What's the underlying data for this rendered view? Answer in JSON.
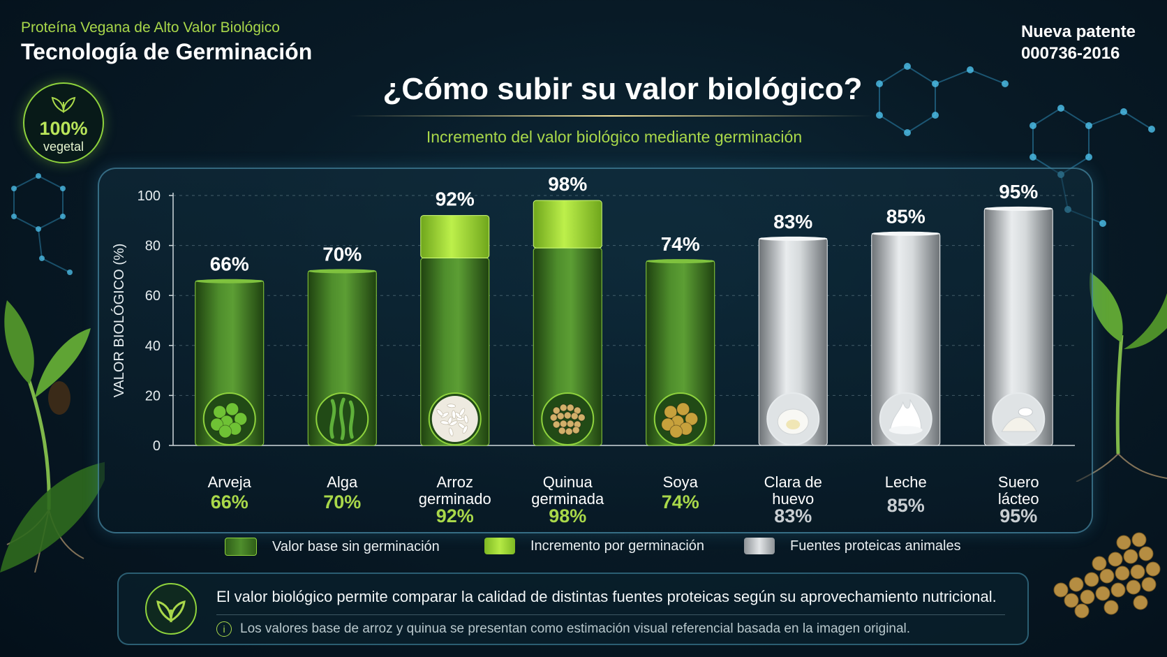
{
  "header": {
    "subtitle": "Proteína Vegana de Alto Valor Biológico",
    "title": "Tecnología de Germinación",
    "patent_line1": "Nueva patente",
    "patent_line2": "000736-2016",
    "badge_pct": "100%",
    "badge_label": "vegetal",
    "badge_icon": "leaf-icon"
  },
  "main": {
    "title": "¿Cómo subir su valor biológico?",
    "subtitle": "Incremento del valor biológico mediante germinación"
  },
  "chart_data": {
    "type": "bar",
    "stacked": true,
    "ylabel": "VALOR BIOLÓGICO (%)",
    "ylim": [
      0,
      100
    ],
    "yticks": [
      0,
      20,
      40,
      60,
      80,
      100
    ],
    "grid": true,
    "categories": [
      "Arveja",
      "Alga",
      "Arroz germinado",
      "Quinua germinada",
      "Soya",
      "Clara de huevo",
      "Leche",
      "Suero lácteo"
    ],
    "category_lines": [
      [
        "Arveja"
      ],
      [
        "Alga"
      ],
      [
        "Arroz",
        "germinado"
      ],
      [
        "Quinua",
        "germinada"
      ],
      [
        "Soya"
      ],
      [
        "Clara de",
        "huevo"
      ],
      [
        "Leche"
      ],
      [
        "Suero",
        "lácteo"
      ]
    ],
    "series": [
      {
        "name": "Valor base sin germinación",
        "color": "#3f7a22",
        "values": [
          66,
          70,
          75,
          79,
          74,
          null,
          null,
          null
        ]
      },
      {
        "name": "Incremento por germinación",
        "color": "#a6dd34",
        "values": [
          null,
          null,
          17,
          19,
          null,
          null,
          null,
          null
        ]
      },
      {
        "name": "Fuentes proteicas animales",
        "color": "#c4c8cc",
        "values": [
          null,
          null,
          null,
          null,
          null,
          83,
          85,
          95
        ]
      }
    ],
    "totals": [
      66,
      70,
      92,
      98,
      74,
      83,
      85,
      95
    ],
    "top_labels": [
      "66%",
      "70%",
      "92%",
      "98%",
      "74%",
      "83%",
      "85%",
      "95%"
    ],
    "bottom_labels": [
      "66%",
      "70%",
      "92%",
      "98%",
      "74%",
      "83%",
      "85%",
      "95%"
    ],
    "icons": [
      "peas-icon",
      "seaweed-icon",
      "rice-icon",
      "quinoa-icon",
      "soybean-icon",
      "egg-white-icon",
      "milk-splash-icon",
      "whey-powder-icon"
    ],
    "legend_placement": "bottom"
  },
  "legend": {
    "items": [
      {
        "label": "Valor base sin germinación",
        "color": "#3f7a22"
      },
      {
        "label": "Incremento por germinación",
        "color": "#a6dd34"
      },
      {
        "label": "Fuentes proteicas animales",
        "color": "#c4c8cc"
      }
    ]
  },
  "info": {
    "text": "El valor biológico permite comparar la calidad de distintas fuentes proteicas según su aprovechamiento nutricional.",
    "note": "Los valores base de arroz y quinua se presentan como estimación visual referencial basada en la imagen original.",
    "icon": "sprout-icon",
    "note_icon": "info-icon"
  },
  "colors": {
    "accent": "#a9d84a",
    "plant_bar": "#3f7a22",
    "increment_bar": "#a6dd34",
    "animal_bar": "#c4c8cc",
    "animal_label": "#c9ced2"
  }
}
